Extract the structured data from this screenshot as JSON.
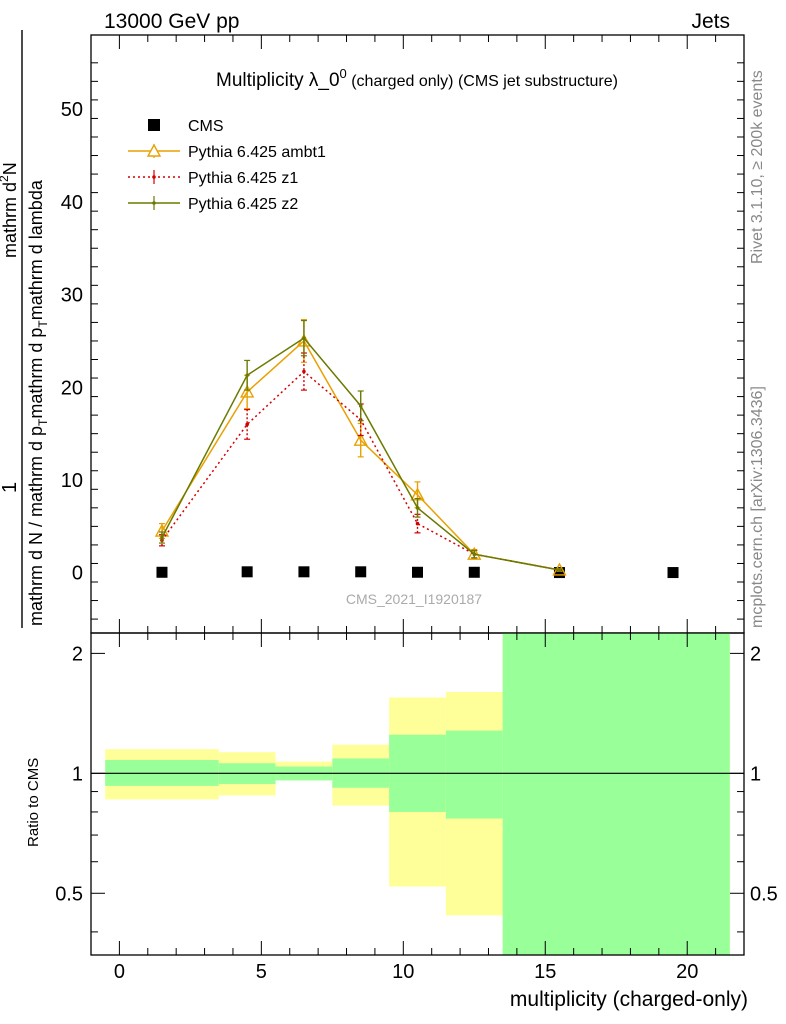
{
  "header": {
    "left": "13000 GeV pp",
    "right": "Jets"
  },
  "side": {
    "rivet": "Rivet 3.1.10, ≥ 200k events",
    "mcplots": "mcplots.cern.ch [arXiv:1306.3436]"
  },
  "chart_data": [
    {
      "type": "line",
      "title": "Multiplicity λ_0",
      "title_sup": "0",
      "title_suffix": " (charged only) (CMS jet substructure)",
      "watermark": "CMS_2021_I1920187",
      "ylabel_num": "1",
      "ylabel_den": "mathrm d N / mathrm d p",
      "ylabel_den_sub": "T",
      "ylabel_den_rest": "mathrm d p",
      "ylabel_den_sub2": "T",
      "ylabel_den_end": "mathrm d lambda",
      "ylabel_top": "mathrm d",
      "ylabel_top_sup": "2",
      "ylabel_top_end": "N",
      "xlim": [
        -1,
        22
      ],
      "ylim": [
        -6.5,
        58
      ],
      "yticks": [
        "0",
        "10",
        "20",
        "30",
        "40",
        "50"
      ],
      "legend_position": "top-left",
      "series": [
        {
          "name": "CMS",
          "color": "#000000",
          "marker": "square",
          "x": [
            1.5,
            4.5,
            6.5,
            8.5,
            10.5,
            12.5,
            15.5,
            19.5
          ],
          "y": [
            0.05,
            0.1,
            0.1,
            0.1,
            0.05,
            0.05,
            0.02,
            0.02
          ]
        },
        {
          "name": "Pythia 6.425 ambt1",
          "color": "#e8a100",
          "marker": "triangle",
          "line": "solid",
          "x": [
            1.5,
            4.5,
            6.5,
            8.5,
            10.5,
            12.5,
            15.5
          ],
          "y": [
            4.5,
            19.5,
            25.0,
            14.3,
            8.4,
            2.0,
            0.3
          ],
          "err": [
            0.8,
            1.8,
            2.3,
            1.8,
            1.4,
            0.5,
            0.15
          ]
        },
        {
          "name": "Pythia 6.425 z1",
          "color": "#d40000",
          "marker": "dot",
          "line": "dotted",
          "x": [
            1.5,
            4.5,
            6.5,
            8.5,
            10.5,
            12.5,
            15.5
          ],
          "y": [
            3.5,
            16.0,
            21.7,
            16.5,
            5.3,
            2.0,
            0.3
          ],
          "err": [
            0.6,
            1.6,
            2.0,
            1.7,
            1.0,
            0.4,
            0.1
          ]
        },
        {
          "name": "Pythia 6.425 z2",
          "color": "#6b7a00",
          "marker": "dot",
          "line": "solid",
          "x": [
            1.5,
            4.5,
            6.5,
            8.5,
            10.5,
            12.5,
            15.5
          ],
          "y": [
            3.8,
            21.3,
            25.3,
            18.0,
            7.0,
            2.0,
            0.3
          ],
          "err": [
            0.6,
            1.6,
            1.9,
            1.6,
            1.0,
            0.4,
            0.1
          ]
        }
      ]
    },
    {
      "type": "area",
      "ylabel": "Ratio to CMS",
      "xlabel": "multiplicity (charged-only)",
      "xlim": [
        -1,
        22
      ],
      "ylim": [
        0.35,
        2.25
      ],
      "xticks": [
        "0",
        "5",
        "10",
        "15",
        "20"
      ],
      "yticks": [
        "0.5",
        "1",
        "2"
      ],
      "reference": 1,
      "bins": [
        {
          "lo": -0.5,
          "hi": 3.5,
          "green": [
            0.93,
            1.08
          ],
          "yellow": [
            0.86,
            1.15
          ]
        },
        {
          "lo": 3.5,
          "hi": 5.5,
          "green": [
            0.94,
            1.06
          ],
          "yellow": [
            0.88,
            1.13
          ]
        },
        {
          "lo": 5.5,
          "hi": 7.5,
          "green": [
            0.96,
            1.04
          ],
          "yellow": [
            0.96,
            1.07
          ]
        },
        {
          "lo": 7.5,
          "hi": 9.5,
          "green": [
            0.92,
            1.09
          ],
          "yellow": [
            0.83,
            1.18
          ]
        },
        {
          "lo": 9.5,
          "hi": 11.5,
          "green": [
            0.8,
            1.25
          ],
          "yellow": [
            0.52,
            1.55
          ]
        },
        {
          "lo": 11.5,
          "hi": 13.5,
          "green": [
            0.77,
            1.28
          ],
          "yellow": [
            0.44,
            1.6
          ]
        },
        {
          "lo": 13.5,
          "hi": 21.5,
          "green": [
            0.35,
            2.25
          ],
          "yellow": [
            0.35,
            2.25
          ]
        }
      ]
    }
  ]
}
